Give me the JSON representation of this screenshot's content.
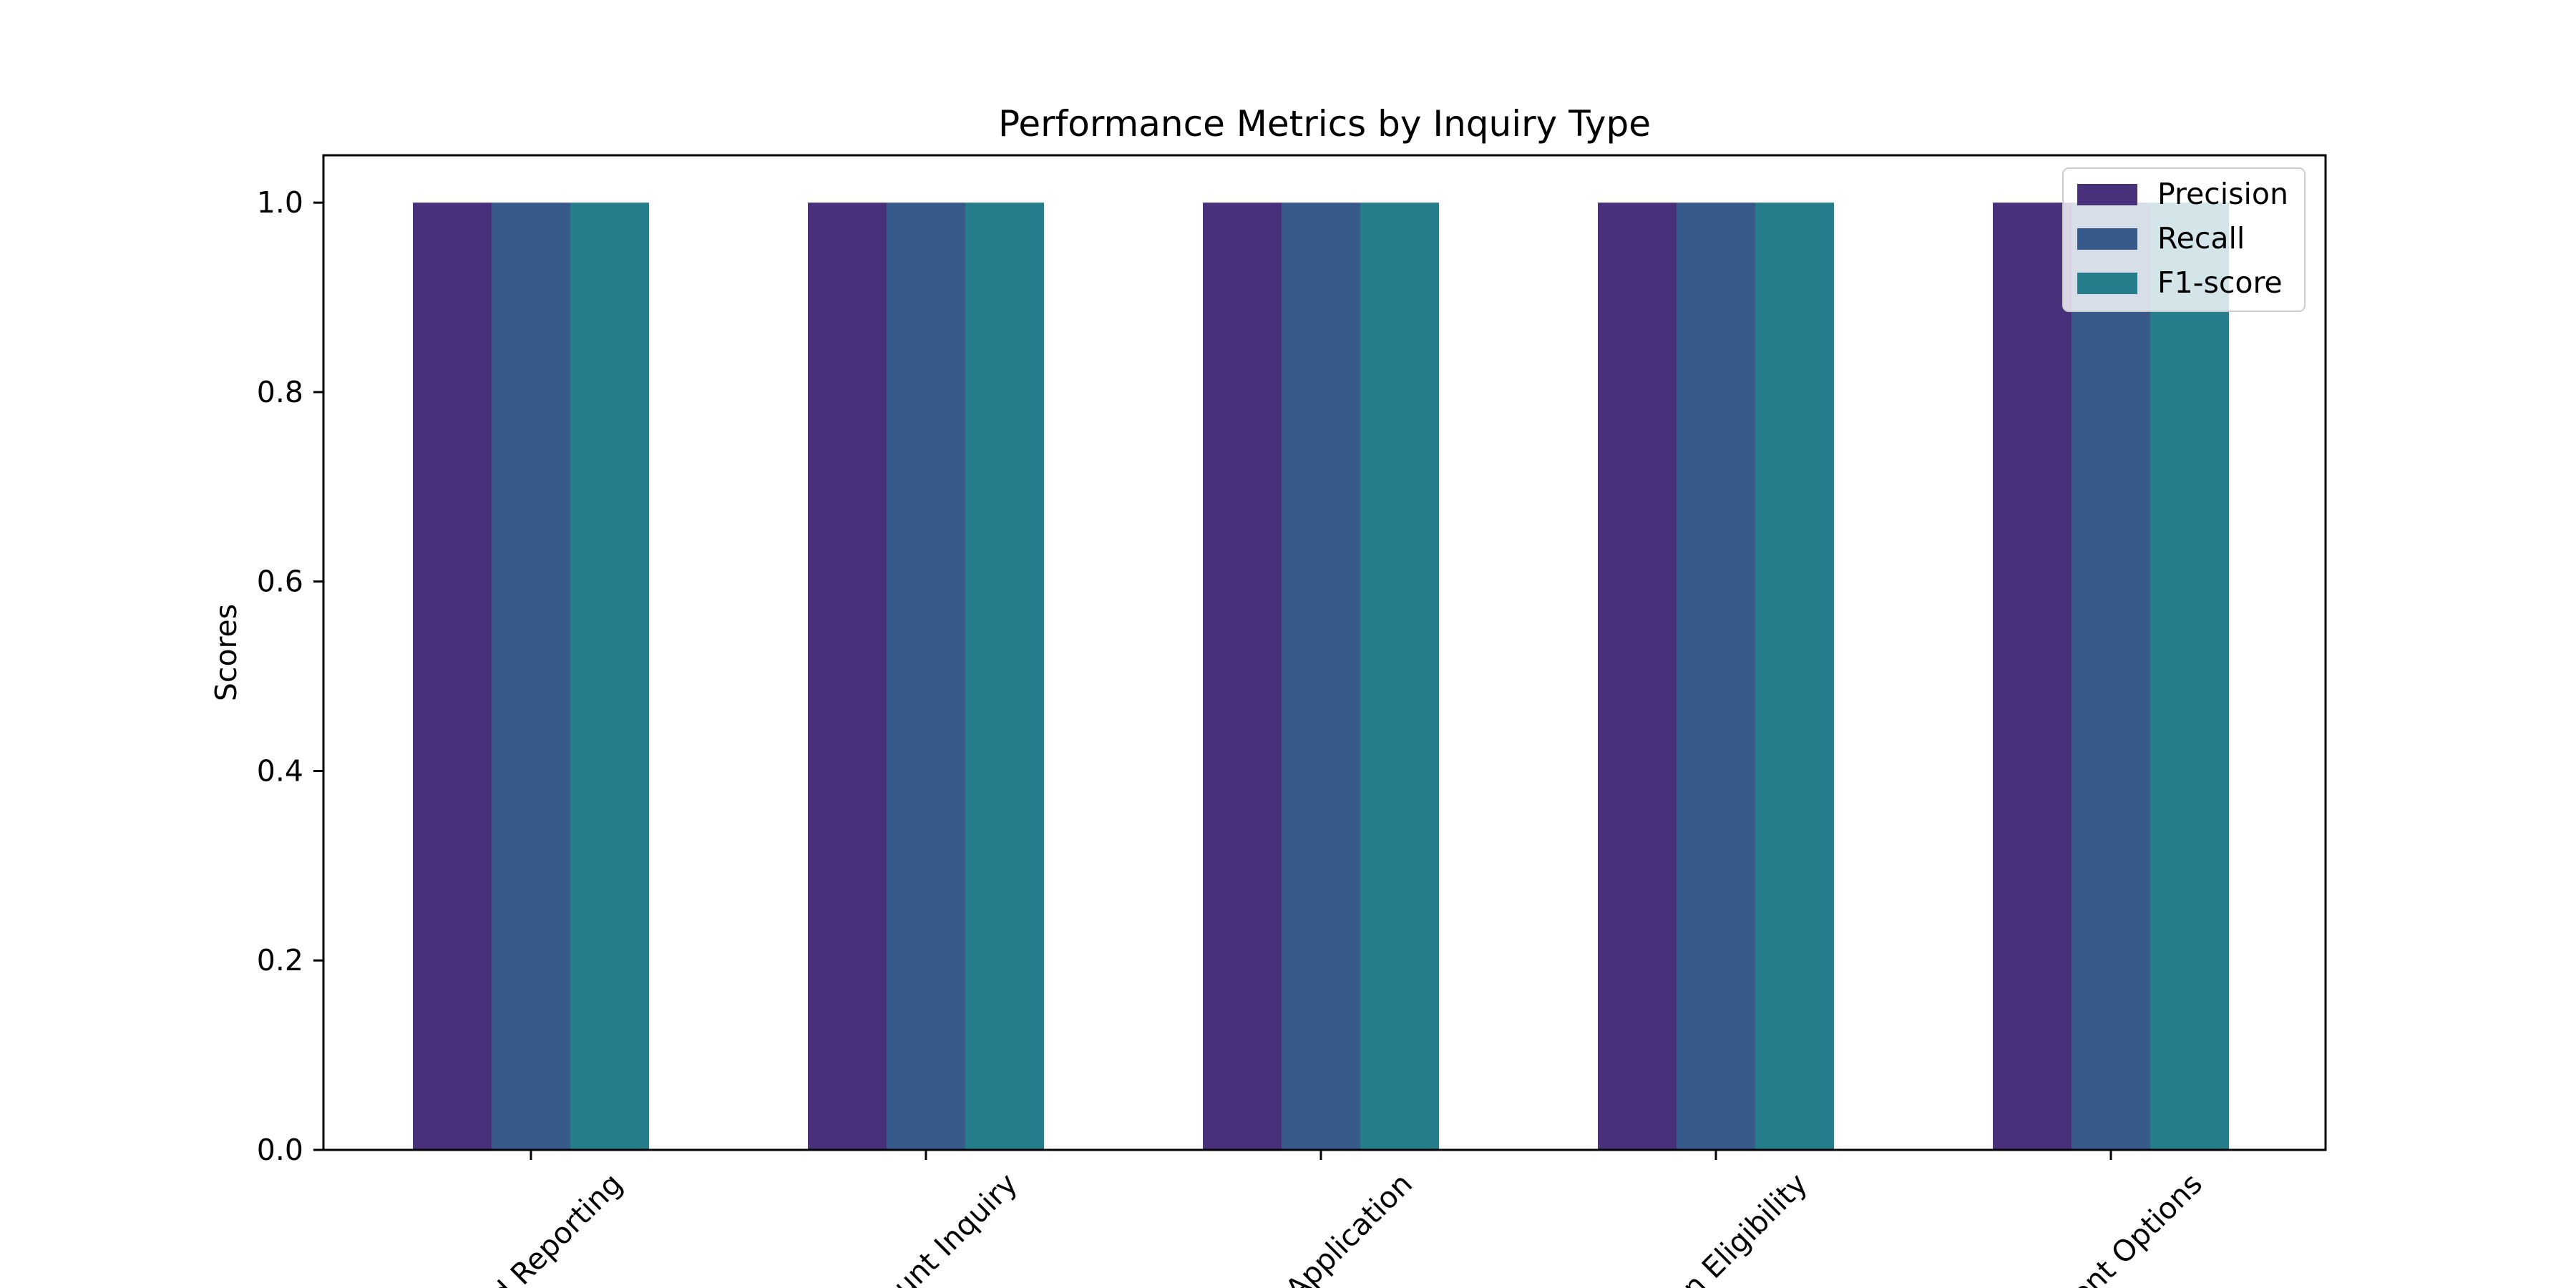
{
  "chart_data": {
    "type": "bar",
    "title": "Performance Metrics by Inquiry Type",
    "xlabel": "",
    "ylabel": "Scores",
    "ylim": [
      0,
      1.05
    ],
    "yticks": [
      "0.0",
      "0.2",
      "0.4",
      "0.6",
      "0.8",
      "1.0"
    ],
    "categories": [
      "Fraud Reporting",
      "Account Inquiry",
      "Loan Application",
      "Loan Eligibility",
      "Payment Options"
    ],
    "visible_category_labels": [
      "d Reporting",
      "unt Inquiry",
      "Application",
      "n Eligibility",
      "ent Options"
    ],
    "series": [
      {
        "name": "Precision",
        "values": [
          1.0,
          1.0,
          1.0,
          1.0,
          1.0
        ],
        "color": "#48307a"
      },
      {
        "name": "Recall",
        "values": [
          1.0,
          1.0,
          1.0,
          1.0,
          1.0
        ],
        "color": "#375a8b"
      },
      {
        "name": "F1-score",
        "values": [
          1.0,
          1.0,
          1.0,
          1.0,
          1.0
        ],
        "color": "#267e8c"
      }
    ],
    "grid": false,
    "legend_position": "top-right"
  }
}
